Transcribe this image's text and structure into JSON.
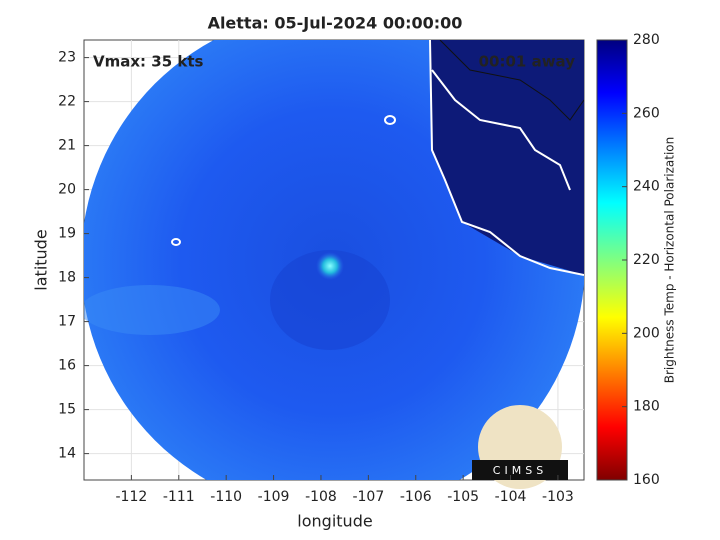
{
  "map": {
    "title": "Aletta: 05-Jul-2024 00:00:00",
    "annotations": {
      "vmax": "Vmax: 35 kts",
      "time_away": "00:01 away"
    },
    "xlabel": "longitude",
    "ylabel": "latitude",
    "xlim": [
      -113,
      -102.45
    ],
    "ylim": [
      13.4,
      23.4
    ],
    "xticks": [
      -112,
      -111,
      -110,
      -109,
      -108,
      -107,
      -106,
      -105,
      -104,
      -103
    ],
    "yticks": [
      14,
      15,
      16,
      17,
      18,
      19,
      20,
      21,
      22,
      23
    ],
    "grid": true,
    "colorbar": {
      "label": "Brightness Temp - Horizontal Polarization",
      "lim": [
        160,
        280
      ],
      "ticks": [
        160,
        180,
        200,
        220,
        240,
        260,
        280
      ]
    },
    "logo": "CIMSS"
  }
}
